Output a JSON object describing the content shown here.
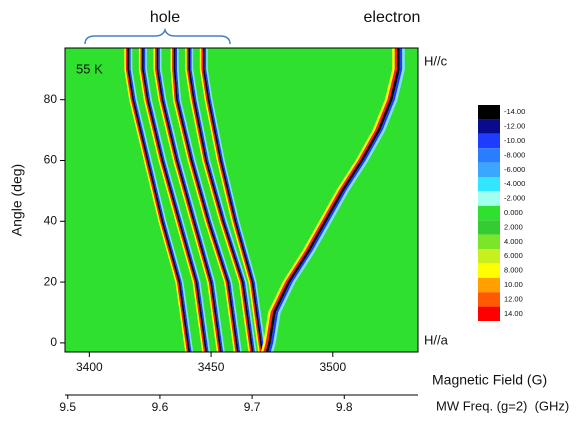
{
  "chart_data": {
    "type": "line",
    "xlabel": "Magnetic Field (G)",
    "x2label": "MW Freq. (g=2)  (GHz)",
    "ylabel": "Angle (deg)",
    "xlim": [
      3390,
      3535
    ],
    "xticks": [
      3400,
      3450,
      3500
    ],
    "x2lim": [
      9.497,
      9.88
    ],
    "x2ticks": [
      9.5,
      9.6,
      9.7,
      9.8
    ],
    "ylim": [
      -3,
      97
    ],
    "yticks": [
      0,
      20,
      40,
      60,
      80
    ],
    "background": "#2fe02f",
    "annotations": [
      {
        "text": "hole",
        "x": 3420,
        "y": 112
      },
      {
        "text": "electron",
        "x": 3520,
        "y": 112
      },
      {
        "text": "55 K",
        "x": 3402,
        "y": 88
      },
      {
        "text": "H//c",
        "x": 3537,
        "y": 90
      },
      {
        "text": "H//a",
        "x": 3537,
        "y": 0
      }
    ],
    "series": [
      {
        "color": "#000000",
        "x": [
          3441,
          3437,
          3430,
          3424,
          3418,
          3416,
          3416
        ],
        "values": [
          -3,
          20,
          40,
          60,
          80,
          90,
          97
        ]
      },
      {
        "color": "#000000",
        "x": [
          3448,
          3444,
          3437,
          3430,
          3424,
          3422,
          3422
        ],
        "values": [
          -3,
          20,
          40,
          60,
          80,
          90,
          97
        ]
      },
      {
        "color": "#000000",
        "x": [
          3454,
          3450,
          3443,
          3436,
          3430,
          3428,
          3428
        ],
        "values": [
          -3,
          20,
          40,
          60,
          80,
          90,
          97
        ]
      },
      {
        "color": "#000000",
        "x": [
          3461,
          3457,
          3449,
          3442,
          3436,
          3435,
          3435
        ],
        "values": [
          -3,
          20,
          40,
          60,
          80,
          90,
          97
        ]
      },
      {
        "color": "#000000",
        "x": [
          3467,
          3463,
          3455,
          3448,
          3443,
          3441,
          3441
        ],
        "values": [
          -3,
          20,
          40,
          60,
          80,
          90,
          97
        ]
      },
      {
        "color": "#000000",
        "x": [
          3471,
          3467,
          3460,
          3454,
          3449,
          3447,
          3447
        ],
        "values": [
          -3,
          20,
          40,
          60,
          80,
          90,
          97
        ]
      },
      {
        "color": "#000000",
        "x": [
          3473,
          3474,
          3476,
          3482,
          3490,
          3497,
          3504,
          3512,
          3519,
          3524,
          3527,
          3527
        ],
        "values": [
          -3,
          0,
          10,
          20,
          30,
          40,
          50,
          60,
          70,
          80,
          90,
          97
        ]
      }
    ],
    "colorbar": {
      "colors": [
        "#000000",
        "#0a0a8c",
        "#1e3cff",
        "#2a7dff",
        "#3aa6ff",
        "#33e6ff",
        "#a0fff0",
        "#2fe02f",
        "#33cc33",
        "#7be52a",
        "#c8f01e",
        "#ffff00",
        "#ff9f00",
        "#ff5a00",
        "#ff0000"
      ],
      "labels": [
        {
          "value": -14,
          "label": "-14.00"
        },
        {
          "value": -12,
          "label": "-12.00"
        },
        {
          "value": -10,
          "label": "-10.00"
        },
        {
          "value": -8,
          "label": "-8.000"
        },
        {
          "value": -6,
          "label": "-6.000"
        },
        {
          "value": -4,
          "label": "-4.000"
        },
        {
          "value": -2,
          "label": "-2.000"
        },
        {
          "value": 0,
          "label": "0.000"
        },
        {
          "value": 2,
          "label": "2.000"
        },
        {
          "value": 4,
          "label": "4.000"
        },
        {
          "value": 6,
          "label": "6.000"
        },
        {
          "value": 8,
          "label": "8.000"
        },
        {
          "value": 10,
          "label": "10.00"
        },
        {
          "value": 12,
          "label": "12.00"
        },
        {
          "value": 14,
          "label": "14.00"
        }
      ]
    }
  }
}
